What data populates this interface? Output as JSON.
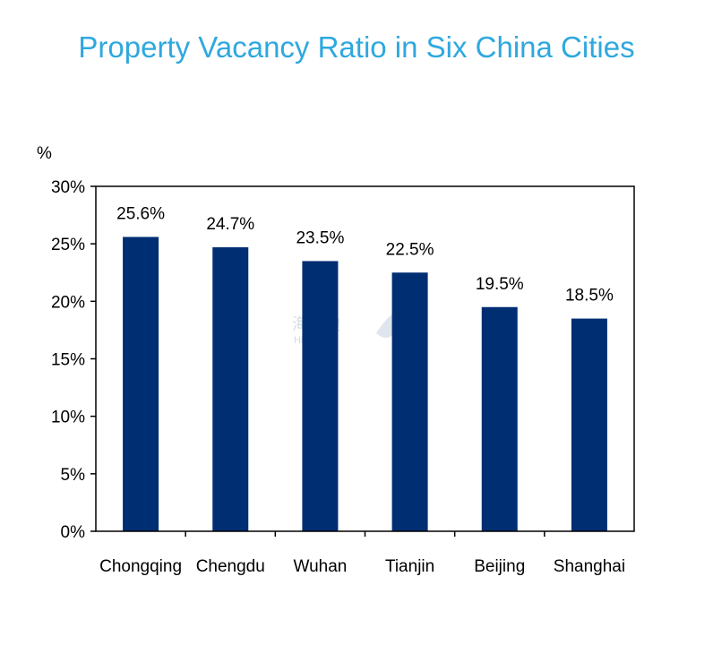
{
  "chart_data": {
    "type": "bar",
    "title": "Property Vacancy Ratio in Six China Cities",
    "unit_label": "%",
    "categories": [
      "Chongqing",
      "Chengdu",
      "Wuhan",
      "Tianjin",
      "Beijing",
      "Shanghai"
    ],
    "values": [
      25.6,
      24.7,
      23.5,
      22.5,
      19.5,
      18.5
    ],
    "data_labels": [
      "25.6%",
      "24.7%",
      "23.5%",
      "22.5%",
      "19.5%",
      "18.5%"
    ],
    "ylim": [
      0,
      30
    ],
    "yticks": [
      0,
      5,
      10,
      15,
      20,
      25,
      30
    ],
    "ytick_labels": [
      "0%",
      "5%",
      "10%",
      "15%",
      "20%",
      "25%",
      "30%"
    ],
    "bar_color": "#002e73",
    "title_color": "#2ea8df",
    "grid": false,
    "legend": "none"
  },
  "watermark": {
    "text": "海那边",
    "subtext": "Hinabian"
  }
}
